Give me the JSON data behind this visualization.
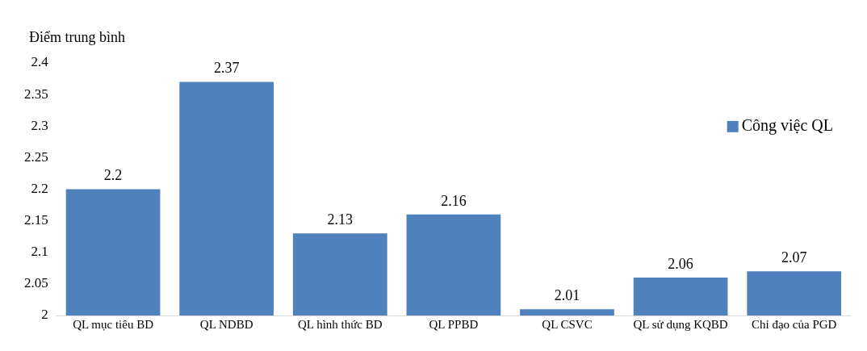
{
  "chart_data": {
    "type": "bar",
    "ylabel": "Điểm trung bình",
    "categories": [
      "QL mục tiêu BD",
      "QL NDBD",
      "QL hình thức BD",
      "QL PPBD",
      "QL CSVC",
      "QL sử dụng KQBD",
      "Chỉ đạo của PGD"
    ],
    "series": [
      {
        "name": "Công việc QL",
        "color": "#4f81bd",
        "values": [
          2.2,
          2.37,
          2.13,
          2.16,
          2.01,
          2.06,
          2.07
        ]
      }
    ],
    "ylim": [
      2,
      2.4
    ],
    "yticks": [
      2,
      2.05,
      2.1,
      2.15,
      2.2,
      2.25,
      2.3,
      2.35,
      2.4
    ],
    "grid": false,
    "legend": "right",
    "data_labels": true
  }
}
